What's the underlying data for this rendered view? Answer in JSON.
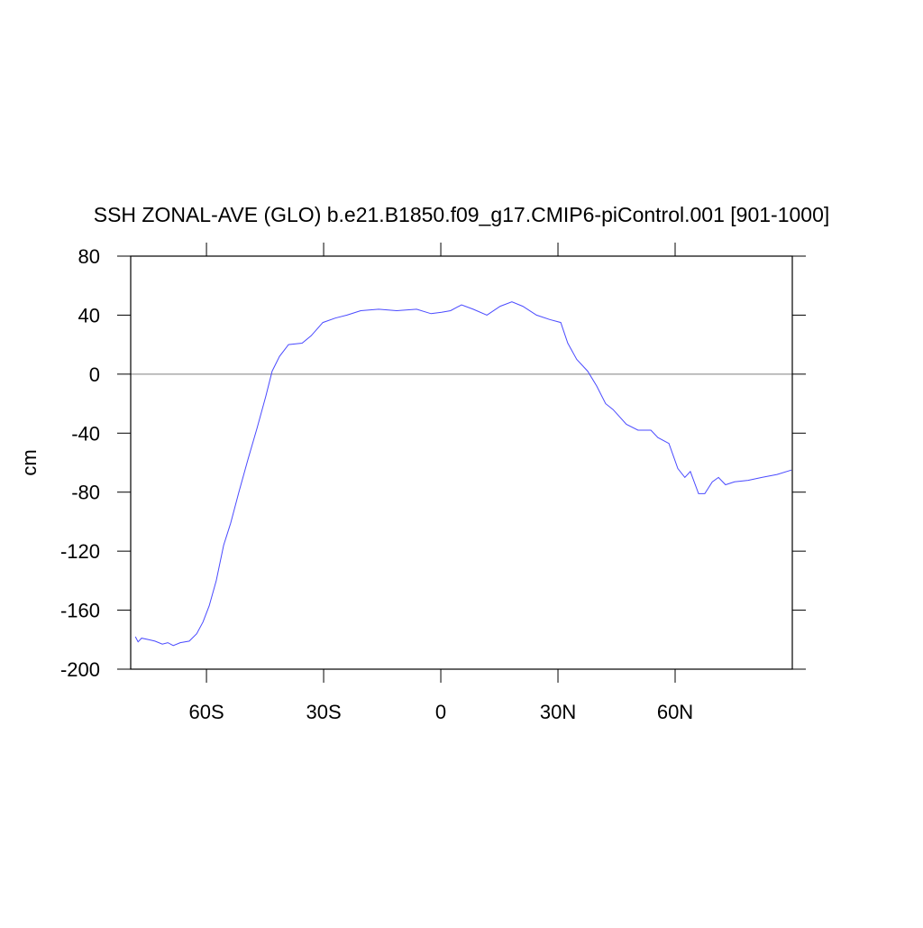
{
  "chart_data": {
    "type": "line",
    "title": "SSH ZONAL-AVE (GLO) b.e21.B1850.f09_g17.CMIP6-piControl.001 [901-1000]",
    "y_label": "cm",
    "x": [
      -78.2,
      -77.5,
      -76.6,
      -74.8,
      -73.2,
      -71.3,
      -69.9,
      -68.5,
      -66.7,
      -64.4,
      -62.5,
      -60.9,
      -59.3,
      -57.5,
      -55.6,
      -53.8,
      -51.7,
      -49.4,
      -47.1,
      -44.8,
      -43.2,
      -41.3,
      -39.0,
      -35.5,
      -33.2,
      -30.2,
      -27.0,
      -24.0,
      -20.5,
      -15.9,
      -11.3,
      -6.2,
      -2.5,
      0.2,
      2.5,
      5.3,
      8.3,
      11.8,
      15.2,
      18.2,
      21.0,
      24.5,
      27.9,
      30.7,
      32.5,
      34.8,
      37.6,
      39.9,
      42.2,
      44.1,
      47.5,
      50.5,
      53.8,
      55.6,
      58.4,
      60.7,
      62.5,
      63.9,
      66.0,
      67.6,
      69.5,
      71.1,
      72.9,
      75.2,
      78.7,
      82.2,
      86.1,
      89.8
    ],
    "series": [
      {
        "color": "#4a4aff",
        "values": [
          -178,
          -181.5,
          -179,
          -180,
          -181,
          -183,
          -182,
          -184,
          -182,
          -181,
          -176,
          -168,
          -157,
          -140,
          -116,
          -101,
          -80,
          -58,
          -37,
          -15,
          2,
          12,
          20,
          21,
          26,
          35,
          38,
          40,
          43,
          44,
          43,
          44,
          41,
          42,
          43,
          47,
          44,
          40,
          46,
          49,
          46,
          40,
          37,
          35,
          21,
          10,
          2,
          -8,
          -20,
          -24,
          -34,
          -38,
          -38,
          -43,
          -47,
          -64,
          -70,
          -66,
          -81,
          -81,
          -73,
          -70,
          -75,
          -73,
          -72,
          -70,
          -68,
          -65
        ]
      }
    ],
    "xlim": [
      -79.4,
      90
    ],
    "xticks": [
      {
        "value": -60,
        "label": "60S"
      },
      {
        "value": -30,
        "label": "30S"
      },
      {
        "value": 0,
        "label": "0"
      },
      {
        "value": 30,
        "label": "30N"
      },
      {
        "value": 60,
        "label": "60N"
      }
    ],
    "ylim": [
      -200,
      80
    ],
    "yticks": [
      -200,
      -160,
      -120,
      -80,
      -40,
      0,
      40,
      80
    ],
    "reference_line": 0
  }
}
